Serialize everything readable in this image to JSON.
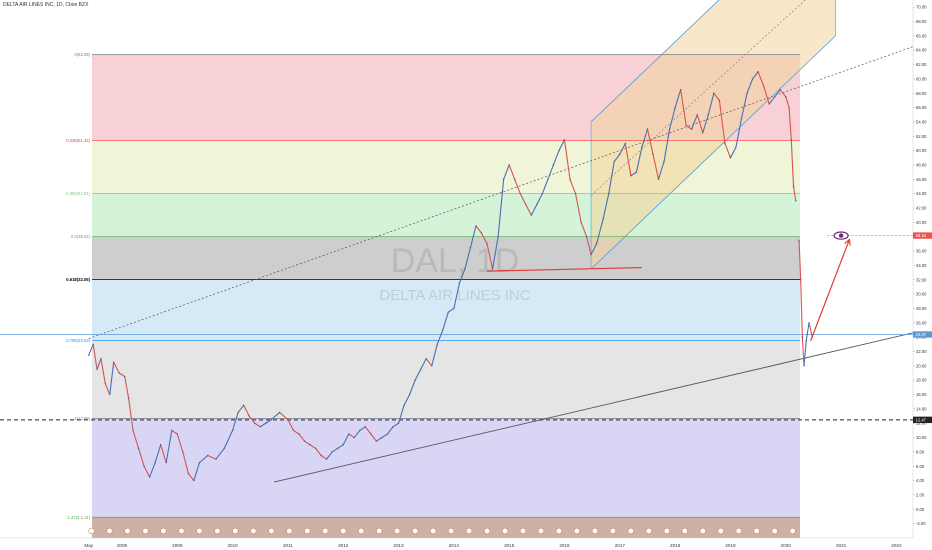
{
  "header": {
    "symbol_title": "DELTA AIR LINES INC, 1D, Cboe BZX"
  },
  "watermark": {
    "ticker": "DAL, 1D",
    "name": "DELTA AIR LINES INC"
  },
  "chart_data": {
    "type": "line",
    "title": "DELTA AIR LINES INC, 1D, Cboe BZX",
    "xlabel": "",
    "ylabel": "",
    "x_ticks": [
      "May",
      "2008",
      "2009",
      "2010",
      "2011",
      "2012",
      "2013",
      "2014",
      "2015",
      "2016",
      "2017",
      "2018",
      "2019",
      "2020",
      "2021",
      "2022"
    ],
    "xlim": [
      2007.35,
      2022.3
    ],
    "ylim": [
      -4,
      71
    ],
    "y_ticks": [
      "70.00",
      "68.00",
      "66.00",
      "64.00",
      "62.00",
      "60.00",
      "58.00",
      "56.00",
      "54.00",
      "52.00",
      "50.00",
      "48.00",
      "46.00",
      "44.00",
      "42.00",
      "40.00",
      "38.00",
      "36.00",
      "34.00",
      "32.00",
      "30.00",
      "28.00",
      "26.00",
      "24.00",
      "22.00",
      "20.00",
      "18.00",
      "16.00",
      "14.00",
      "12.00",
      "10.00",
      "8.00",
      "6.00",
      "4.00",
      "2.00",
      "0.00",
      "-2.00"
    ],
    "series": [
      {
        "values": [
          [
            2007.4,
            21.5
          ],
          [
            2007.48,
            23.0
          ],
          [
            2007.55,
            19.5
          ],
          [
            2007.62,
            21.0
          ],
          [
            2007.7,
            17.5
          ],
          [
            2007.78,
            16.0
          ],
          [
            2007.85,
            20.5
          ],
          [
            2007.95,
            19.0
          ],
          [
            2008.05,
            18.5
          ],
          [
            2008.12,
            15.5
          ],
          [
            2008.2,
            11.0
          ],
          [
            2008.3,
            8.5
          ],
          [
            2008.4,
            6.0
          ],
          [
            2008.5,
            4.5
          ],
          [
            2008.6,
            6.5
          ],
          [
            2008.7,
            9.0
          ],
          [
            2008.8,
            6.5
          ],
          [
            2008.9,
            11.0
          ],
          [
            2009.0,
            10.5
          ],
          [
            2009.1,
            8.0
          ],
          [
            2009.2,
            5.0
          ],
          [
            2009.3,
            4.0
          ],
          [
            2009.4,
            6.5
          ],
          [
            2009.55,
            7.5
          ],
          [
            2009.7,
            7.0
          ],
          [
            2009.85,
            8.5
          ],
          [
            2010.0,
            11.0
          ],
          [
            2010.1,
            13.5
          ],
          [
            2010.2,
            14.5
          ],
          [
            2010.3,
            13.0
          ],
          [
            2010.4,
            12.0
          ],
          [
            2010.5,
            11.5
          ],
          [
            2010.6,
            12.0
          ],
          [
            2010.7,
            12.5
          ],
          [
            2010.85,
            13.5
          ],
          [
            2011.0,
            12.5
          ],
          [
            2011.1,
            11.0
          ],
          [
            2011.2,
            10.5
          ],
          [
            2011.3,
            9.5
          ],
          [
            2011.4,
            9.0
          ],
          [
            2011.5,
            8.5
          ],
          [
            2011.6,
            7.5
          ],
          [
            2011.7,
            7.0
          ],
          [
            2011.8,
            8.0
          ],
          [
            2011.9,
            8.5
          ],
          [
            2012.0,
            9.0
          ],
          [
            2012.1,
            10.5
          ],
          [
            2012.2,
            10.0
          ],
          [
            2012.3,
            11.0
          ],
          [
            2012.4,
            11.5
          ],
          [
            2012.5,
            10.5
          ],
          [
            2012.6,
            9.5
          ],
          [
            2012.7,
            10.0
          ],
          [
            2012.8,
            10.5
          ],
          [
            2012.9,
            11.5
          ],
          [
            2013.0,
            12.0
          ],
          [
            2013.1,
            14.5
          ],
          [
            2013.2,
            16.0
          ],
          [
            2013.3,
            18.0
          ],
          [
            2013.4,
            19.5
          ],
          [
            2013.5,
            21.0
          ],
          [
            2013.6,
            20.0
          ],
          [
            2013.7,
            23.0
          ],
          [
            2013.8,
            25.0
          ],
          [
            2013.9,
            27.5
          ],
          [
            2014.0,
            28.0
          ],
          [
            2014.1,
            31.5
          ],
          [
            2014.2,
            33.5
          ],
          [
            2014.3,
            36.5
          ],
          [
            2014.4,
            39.5
          ],
          [
            2014.5,
            38.5
          ],
          [
            2014.6,
            37.0
          ],
          [
            2014.7,
            33.5
          ],
          [
            2014.8,
            38.0
          ],
          [
            2014.9,
            46.0
          ],
          [
            2015.0,
            48.0
          ],
          [
            2015.1,
            46.0
          ],
          [
            2015.2,
            44.0
          ],
          [
            2015.3,
            42.5
          ],
          [
            2015.4,
            41.0
          ],
          [
            2015.5,
            42.5
          ],
          [
            2015.6,
            44.0
          ],
          [
            2015.7,
            46.0
          ],
          [
            2015.8,
            48.0
          ],
          [
            2015.9,
            50.0
          ],
          [
            2016.0,
            51.5
          ],
          [
            2016.1,
            46.0
          ],
          [
            2016.2,
            44.0
          ],
          [
            2016.3,
            40.0
          ],
          [
            2016.4,
            38.0
          ],
          [
            2016.48,
            35.5
          ],
          [
            2016.58,
            37.0
          ],
          [
            2016.7,
            40.5
          ],
          [
            2016.8,
            44.0
          ],
          [
            2016.9,
            48.5
          ],
          [
            2017.0,
            49.5
          ],
          [
            2017.1,
            51.0
          ],
          [
            2017.2,
            46.5
          ],
          [
            2017.3,
            47.0
          ],
          [
            2017.4,
            50.5
          ],
          [
            2017.5,
            53.0
          ],
          [
            2017.6,
            49.5
          ],
          [
            2017.7,
            46.0
          ],
          [
            2017.8,
            48.5
          ],
          [
            2017.9,
            53.0
          ],
          [
            2018.0,
            56.0
          ],
          [
            2018.1,
            58.5
          ],
          [
            2018.2,
            53.5
          ],
          [
            2018.3,
            53.0
          ],
          [
            2018.4,
            55.0
          ],
          [
            2018.5,
            52.5
          ],
          [
            2018.6,
            55.0
          ],
          [
            2018.7,
            58.0
          ],
          [
            2018.8,
            57.0
          ],
          [
            2018.9,
            51.0
          ],
          [
            2019.0,
            49.0
          ],
          [
            2019.1,
            50.5
          ],
          [
            2019.2,
            54.5
          ],
          [
            2019.3,
            58.0
          ],
          [
            2019.4,
            60.0
          ],
          [
            2019.5,
            61.0
          ],
          [
            2019.6,
            59.0
          ],
          [
            2019.7,
            56.5
          ],
          [
            2019.8,
            57.5
          ],
          [
            2019.9,
            58.5
          ],
          [
            2020.0,
            57.5
          ],
          [
            2020.06,
            56.0
          ],
          [
            2020.1,
            51.5
          ],
          [
            2020.14,
            45.0
          ],
          [
            2020.18,
            43.0
          ]
        ]
      },
      {
        "values": [
          [
            2020.24,
            37.5
          ],
          [
            2020.27,
            32.0
          ],
          [
            2020.3,
            24.0
          ],
          [
            2020.33,
            20.0
          ],
          [
            2020.37,
            23.5
          ],
          [
            2020.42,
            26.0
          ],
          [
            2020.48,
            24.0
          ]
        ]
      }
    ],
    "price_axis_tags": [
      "38.16",
      "24.37",
      "12.47"
    ],
    "annotations": {
      "fib_levels": [
        {
          "label": "0(63.39)",
          "value": 63.39,
          "color": "#787b86"
        },
        {
          "label": "0.236(51.42)",
          "value": 51.42,
          "color": "#f23645"
        },
        {
          "label": "0.382(44.01)",
          "value": 44.01,
          "color": "#81c784"
        },
        {
          "label": "0.5(38.02)",
          "value": 38.02,
          "color": "#4caf50"
        },
        {
          "label": "0.618(32.05)",
          "value": 32.05,
          "color": "#000000"
        },
        {
          "label": "0.786(23.53)",
          "value": 23.53,
          "color": "#2196f3"
        },
        {
          "label": "1(12.68)",
          "value": 12.68,
          "color": "#787b86"
        },
        {
          "label": "1.272(-1.11)",
          "value": -1.11,
          "color": "#4caf50"
        }
      ],
      "zone_fills": [
        "#f7cfd3",
        "#eef4d4",
        "#d2f2d6",
        "#cbcbcb",
        "#d4e8f5",
        "#e4e4e4",
        "#d6d4f3"
      ],
      "channel_fill": "#f3d49b",
      "channel_line_color": "#4f9edb",
      "trendline_color": "#555555",
      "support_color": "#e53935",
      "arrow_color": "#e53935",
      "target_line_color": "#ef5350",
      "current_line_color": "#5b9bd5",
      "eye_color": "#6b2d75"
    }
  }
}
